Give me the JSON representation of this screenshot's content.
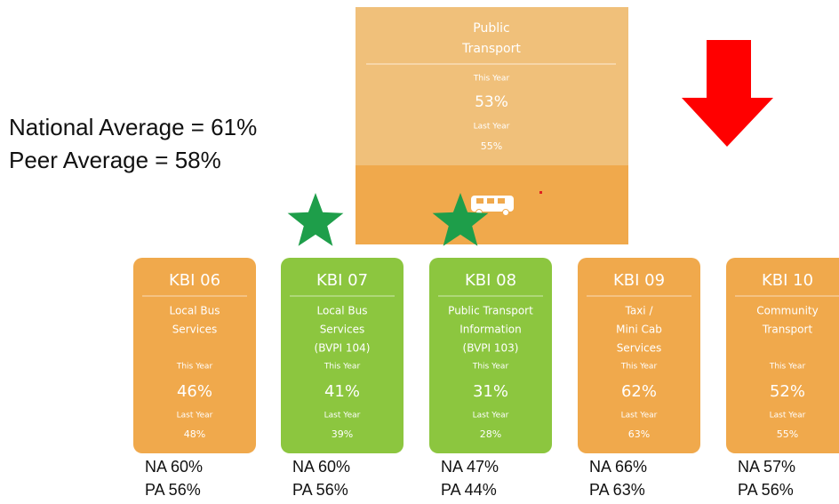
{
  "summary": {
    "title_lines": [
      "Public",
      "Transport"
    ],
    "this_year_label": "This Year",
    "this_year": "53%",
    "last_year_label": "Last Year",
    "last_year": "55%"
  },
  "averages": [
    "National Average = 61%",
    "Peer Average = 58%"
  ],
  "cards": [
    {
      "id": "KBI 06",
      "name_lines": [
        "Local Bus",
        "Services"
      ],
      "this_year_label": "This Year",
      "this_year": "46%",
      "last_year_label": "Last Year",
      "last_year": "48%",
      "na": "NA 60%",
      "pa": "PA 56%",
      "color": "#f0a94c",
      "star": false
    },
    {
      "id": "KBI 07",
      "name_lines": [
        "Local Bus",
        "Services",
        "(BVPI 104)"
      ],
      "this_year_label": "This Year",
      "this_year": "41%",
      "last_year_label": "Last Year",
      "last_year": "39%",
      "na": "NA 60%",
      "pa": "PA 56%",
      "color": "#8cc63f",
      "star": true
    },
    {
      "id": "KBI 08",
      "name_lines": [
        "Public Transport",
        "Information",
        "(BVPI 103)"
      ],
      "this_year_label": "This Year",
      "this_year": "31%",
      "last_year_label": "Last Year",
      "last_year": "28%",
      "na": "NA 47%",
      "pa": "PA 44%",
      "color": "#8cc63f",
      "star": true
    },
    {
      "id": "KBI 09",
      "name_lines": [
        "Taxi /",
        "Mini Cab",
        "Services"
      ],
      "this_year_label": "This Year",
      "this_year": "62%",
      "last_year_label": "Last Year",
      "last_year": "63%",
      "na": "NA 66%",
      "pa": "PA 63%",
      "color": "#f0a94c",
      "star": false
    },
    {
      "id": "KBI 10",
      "name_lines": [
        "Community",
        "Transport"
      ],
      "this_year_label": "This Year",
      "this_year": "52%",
      "last_year_label": "Last Year",
      "last_year": "55%",
      "na": "NA 57%",
      "pa": "PA 56%",
      "color": "#f0a94c",
      "star": false
    }
  ]
}
